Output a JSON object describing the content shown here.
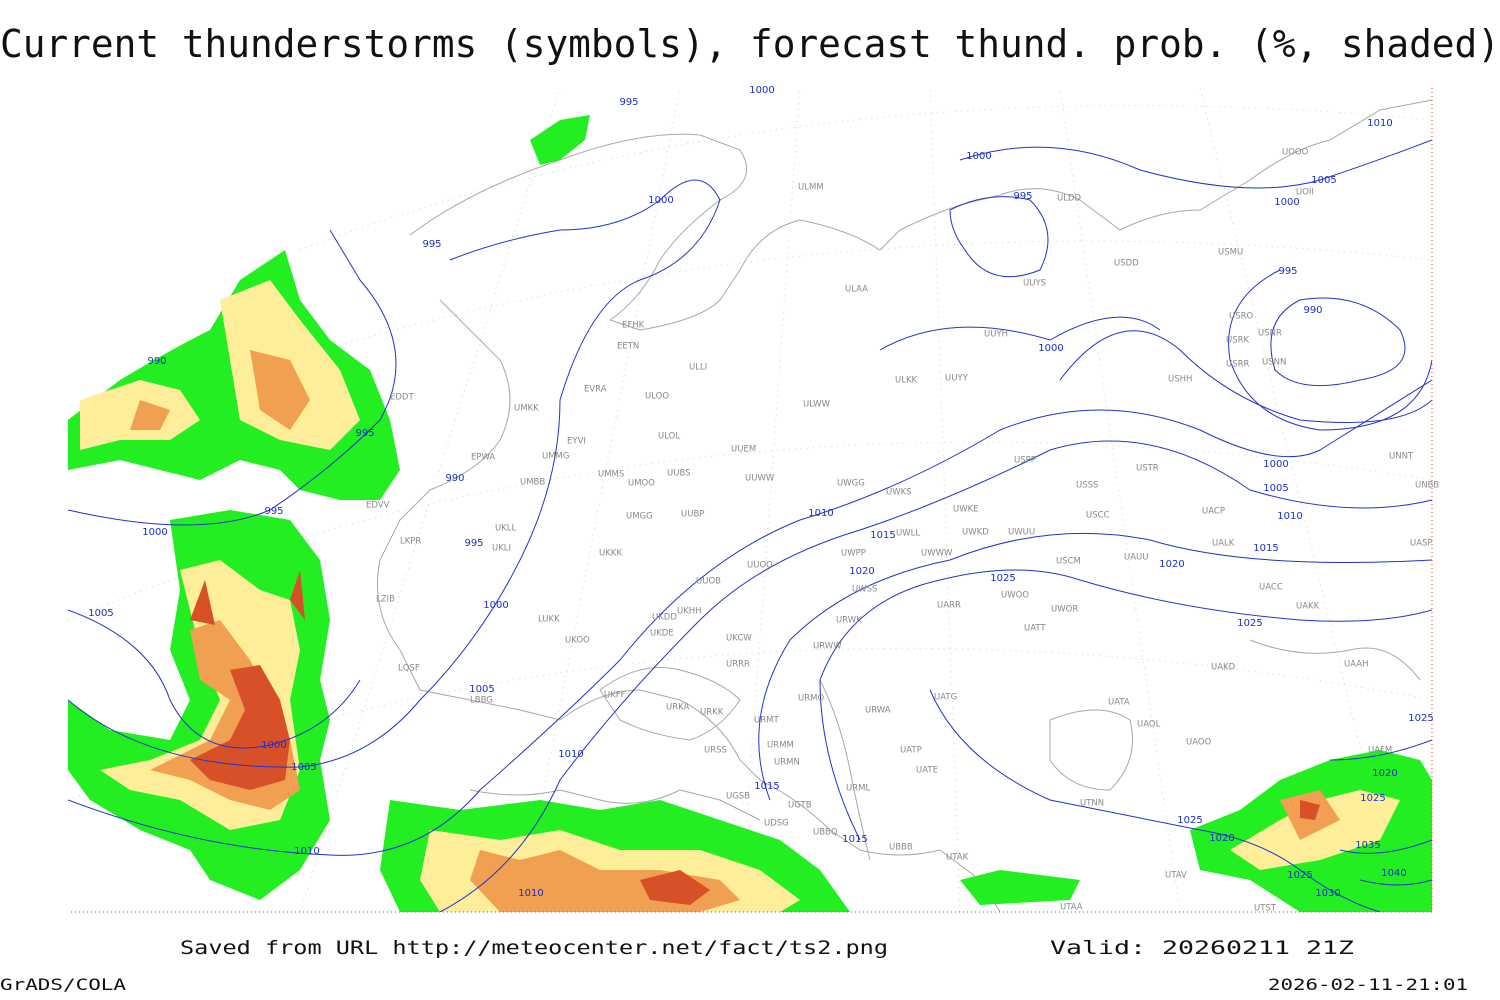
{
  "header": {
    "title": "Current thunderstorms (symbols), forecast thund. prob. (%, shaded)"
  },
  "map": {
    "isobar_labels": [
      995,
      1000,
      1000,
      995,
      1000,
      995,
      1010,
      1005,
      1000,
      995,
      990,
      1000,
      990,
      995,
      990,
      1000,
      1005,
      1010,
      1015,
      1020,
      1025,
      1025,
      1020,
      1015,
      1010,
      995,
      995,
      1000,
      1000,
      1005,
      1005,
      1000,
      1005,
      1010,
      1015,
      1015,
      1010,
      1010,
      1025,
      1020,
      1025,
      1030,
      1035,
      1040,
      1020,
      1025,
      1025
    ],
    "stations": [
      "ULMM",
      "ULDD",
      "UOOO",
      "UOII",
      "USMU",
      "USDD",
      "UUYS",
      "ULAA",
      "USRO",
      "USNR",
      "USRK",
      "USRR",
      "USNN",
      "UUYH",
      "EFHK",
      "EETN",
      "ULLI",
      "ULKK",
      "UUYY",
      "USHH",
      "EVRA",
      "ULOO",
      "EDDT",
      "ULWW",
      "EYVI",
      "UMKK",
      "ULOL",
      "UUEM",
      "EPWA",
      "UMMG",
      "UMMS",
      "UMOO",
      "UUBS",
      "UUWW",
      "UWGG",
      "UWKS",
      "UMBB",
      "USPP",
      "USTR",
      "USSS",
      "UNNT",
      "UNBB",
      "EDVV",
      "UMGG",
      "UUBP",
      "UWKE",
      "USCC",
      "UACP",
      "UKLL",
      "UKLI",
      "LKPR",
      "UWLL",
      "UWKD",
      "UWUU",
      "UALK",
      "UASP",
      "UKKK",
      "UUOO",
      "UWPP",
      "UWWW",
      "USCM",
      "UAUU",
      "UUOB",
      "UKHH",
      "UWSS",
      "UACC",
      "LZIB",
      "LUKK",
      "UKDD",
      "UKDE",
      "UWOO",
      "UWOR",
      "UARR",
      "UAKK",
      "UKOO",
      "UKCW",
      "URWK",
      "UATT",
      "URWW",
      "LQSF",
      "URRR",
      "UAKD",
      "UAAH",
      "UKFF",
      "LBBG",
      "URMO",
      "UATG",
      "UATA",
      "URKA",
      "URKK",
      "URWA",
      "URMT",
      "UAOL",
      "URMM",
      "UATP",
      "UATE",
      "UAOO",
      "URSS",
      "URMN",
      "UAFM",
      "UGSB",
      "UGTB",
      "URML",
      "UTNN",
      "UDSG",
      "UBBQ",
      "UBBB",
      "UTAK",
      "UTAV",
      "UTAA",
      "UTST"
    ]
  },
  "footer": {
    "source": "Saved from URL http://meteocenter.net/fact/ts2.png",
    "valid": "Valid: 20260211 21Z",
    "software": "GrADS/COLA",
    "timestamp": "2026-02-11-21:01"
  }
}
